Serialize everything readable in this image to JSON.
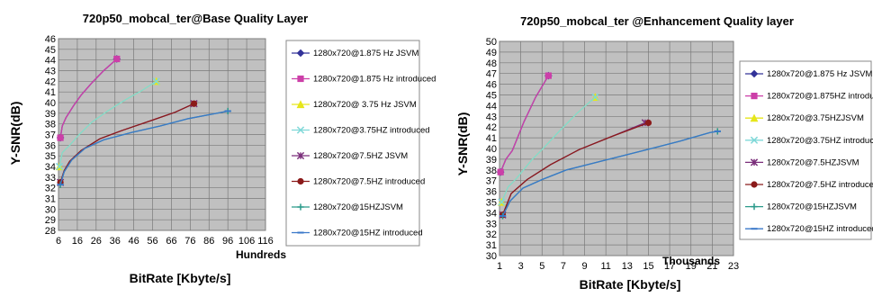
{
  "charts": [
    {
      "title": "720p50_mobcal_ter@Base Quality Layer",
      "ylabel": "Y-SNR(dB)",
      "xlabel": "BitRate [Kbyte/s]",
      "x_unit_label": "Hundreds",
      "x_ticks": [
        "6",
        "16",
        "26",
        "36",
        "46",
        "56",
        "66",
        "76",
        "86",
        "96",
        "106",
        "116"
      ],
      "y_ticks": [
        "28",
        "29",
        "30",
        "31",
        "32",
        "33",
        "34",
        "35",
        "36",
        "37",
        "38",
        "39",
        "40",
        "41",
        "42",
        "43",
        "44",
        "45",
        "46"
      ],
      "legend": [
        "1280x720@1.875 Hz JSVM",
        "1280x720@1.875 Hz introduced",
        "1280x720@ 3.75 Hz JSVM",
        "1280x720@3.75HZ introduced",
        "1280x720@7.5HZ JSVM",
        "1280x720@7.5HZ introduced",
        "1280x720@15HZJSVM",
        "1280x720@15HZ introduced"
      ]
    },
    {
      "title": "720p50_mobcal_ter @Enhancement Quality layer",
      "ylabel": "Y-SNR(dB)",
      "xlabel": "BitRate [Kbyte/s]",
      "x_unit_label": "Thousands",
      "x_ticks": [
        "1",
        "3",
        "5",
        "7",
        "9",
        "11",
        "13",
        "15",
        "17",
        "19",
        "21",
        "23"
      ],
      "y_ticks": [
        "30",
        "31",
        "32",
        "33",
        "34",
        "35",
        "36",
        "37",
        "38",
        "39",
        "40",
        "41",
        "42",
        "43",
        "44",
        "45",
        "46",
        "47",
        "48",
        "49",
        "50"
      ],
      "legend": [
        "1280x720@1.875 Hz JSVM",
        "1280x720@1.875HZ introduced",
        "1280x720@3.75HZJSVM",
        "1280x720@3.75HZ introduced",
        "1280x720@7.5HZJSVM",
        "1280x720@7.5HZ introduced",
        "1280x720@15HZJSVM",
        "1280x720@15HZ introduced"
      ]
    }
  ],
  "chart_data": [
    {
      "type": "line",
      "title": "720p50_mobcal_ter@Base Quality Layer",
      "xlabel": "BitRate [Kbyte/s]",
      "ylabel": "Y-SNR(dB)",
      "x_unit": "Hundreds",
      "xlim": [
        6,
        116
      ],
      "ylim": [
        28,
        46
      ],
      "grid": true,
      "legend_position": "right",
      "series": [
        {
          "name": "1280x720@1.875 Hz JSVM",
          "color": "#333399",
          "marker": "diamond",
          "x": [
            7,
            8,
            10,
            14,
            18,
            24,
            30,
            37
          ],
          "y": [
            36.7,
            37.8,
            38.6,
            39.7,
            40.7,
            41.9,
            43.0,
            44.1
          ]
        },
        {
          "name": "1280x720@1.875 Hz introduced",
          "color": "#cc3fa8",
          "marker": "square",
          "x": [
            7,
            8,
            10,
            14,
            18,
            24,
            30,
            37
          ],
          "y": [
            36.7,
            37.8,
            38.6,
            39.7,
            40.7,
            41.9,
            43.0,
            44.1
          ]
        },
        {
          "name": "1280x720@ 3.75 Hz JSVM",
          "color": "#e6e61a",
          "marker": "triangle",
          "x": [
            6.5,
            8,
            12,
            17,
            24,
            32,
            41,
            50,
            58
          ],
          "y": [
            34.0,
            35.3,
            36.0,
            37.0,
            38.2,
            39.2,
            40.2,
            41.1,
            42.0
          ]
        },
        {
          "name": "1280x720@3.75HZ introduced",
          "color": "#7fd8d8",
          "marker": "x",
          "x": [
            6.5,
            8,
            12,
            17,
            24,
            32,
            41,
            50,
            58
          ],
          "y": [
            34.0,
            35.3,
            36.0,
            37.0,
            38.2,
            39.2,
            40.2,
            41.1,
            42.0
          ]
        },
        {
          "name": "1280x720@7.5HZ JSVM",
          "color": "#7a2e7a",
          "marker": "star",
          "x": [
            7,
            9,
            12,
            18,
            28,
            40,
            55,
            68,
            78
          ],
          "y": [
            32.5,
            33.6,
            34.5,
            35.5,
            36.6,
            37.4,
            38.3,
            39.1,
            39.9
          ]
        },
        {
          "name": "1280x720@7.5HZ introduced",
          "color": "#8b1a1a",
          "marker": "circle",
          "x": [
            7,
            9,
            12,
            18,
            28,
            40,
            55,
            68,
            78
          ],
          "y": [
            32.5,
            33.6,
            34.5,
            35.5,
            36.6,
            37.4,
            38.3,
            39.1,
            39.9
          ]
        },
        {
          "name": "1280x720@15HZJSVM",
          "color": "#2a9a8a",
          "marker": "plus",
          "x": [
            7,
            9,
            13,
            20,
            30,
            45,
            60,
            75,
            96
          ],
          "y": [
            32.3,
            33.5,
            34.6,
            35.7,
            36.5,
            37.2,
            37.8,
            38.5,
            39.2
          ]
        },
        {
          "name": "1280x720@15HZ introduced",
          "color": "#3a78c9",
          "marker": "dash",
          "x": [
            7,
            9,
            13,
            20,
            30,
            45,
            60,
            75,
            96
          ],
          "y": [
            32.3,
            33.5,
            34.6,
            35.7,
            36.5,
            37.2,
            37.8,
            38.5,
            39.2
          ]
        }
      ]
    },
    {
      "type": "line",
      "title": "720p50_mobcal_ter @Enhancement Quality layer",
      "xlabel": "BitRate [Kbyte/s]",
      "ylabel": "Y-SNR(dB)",
      "x_unit": "Thousands",
      "xlim": [
        1,
        23
      ],
      "ylim": [
        30,
        50
      ],
      "grid": true,
      "legend_position": "right",
      "series": [
        {
          "name": "1280x720@1.875 Hz JSVM",
          "color": "#333399",
          "marker": "diamond",
          "x": [
            1.1,
            1.6,
            2.2,
            3.3,
            4.4,
            5.6
          ],
          "y": [
            37.8,
            39.0,
            39.8,
            42.5,
            44.8,
            46.8
          ]
        },
        {
          "name": "1280x720@1.875HZ introduced",
          "color": "#cc3fa8",
          "marker": "square",
          "x": [
            1.1,
            1.6,
            2.2,
            3.3,
            4.4,
            5.6
          ],
          "y": [
            37.8,
            39.0,
            39.8,
            42.5,
            44.8,
            46.8
          ]
        },
        {
          "name": "1280x720@3.75HZJSVM",
          "color": "#e6e61a",
          "marker": "triangle",
          "x": [
            1.2,
            1.8,
            2.6,
            4.0,
            5.2,
            6.6,
            8.3,
            10.0
          ],
          "y": [
            35.0,
            36.4,
            37.2,
            38.9,
            40.1,
            41.6,
            43.3,
            44.8
          ]
        },
        {
          "name": "1280x720@3.75HZ introduced",
          "color": "#7fd8d8",
          "marker": "x",
          "x": [
            1.2,
            1.8,
            2.6,
            4.0,
            5.2,
            6.6,
            8.3,
            10.0
          ],
          "y": [
            35.0,
            36.4,
            37.2,
            38.9,
            40.1,
            41.6,
            43.3,
            44.8
          ]
        },
        {
          "name": "1280x720@7.5HZJSVM",
          "color": "#7a2e7a",
          "marker": "star",
          "x": [
            1.3,
            2.1,
            3.6,
            5.8,
            8.5,
            11.5,
            14.7
          ],
          "y": [
            33.8,
            35.8,
            37.1,
            38.5,
            39.9,
            41.1,
            42.4
          ]
        },
        {
          "name": "1280x720@7.5HZ introduced",
          "color": "#8b1a1a",
          "marker": "circle",
          "x": [
            1.3,
            2.1,
            3.6,
            5.8,
            8.5,
            11.5,
            15.0
          ],
          "y": [
            33.8,
            35.8,
            37.1,
            38.5,
            39.9,
            41.1,
            42.4
          ]
        },
        {
          "name": "1280x720@15HZJSVM",
          "color": "#2a9a8a",
          "marker": "plus",
          "x": [
            1.3,
            2.0,
            3.2,
            5.0,
            7.3,
            10.5,
            14.5,
            18.0,
            20.8,
            21.5
          ],
          "y": [
            33.7,
            35.1,
            36.3,
            37.1,
            38.0,
            38.8,
            39.8,
            40.7,
            41.5,
            41.6
          ]
        },
        {
          "name": "1280x720@15HZ introduced",
          "color": "#3a78c9",
          "marker": "dash",
          "x": [
            1.3,
            2.0,
            3.2,
            5.0,
            7.3,
            10.5,
            14.5,
            18.0,
            20.8,
            21.5
          ],
          "y": [
            33.7,
            35.1,
            36.3,
            37.1,
            38.0,
            38.8,
            39.8,
            40.7,
            41.5,
            41.6
          ]
        }
      ]
    }
  ]
}
